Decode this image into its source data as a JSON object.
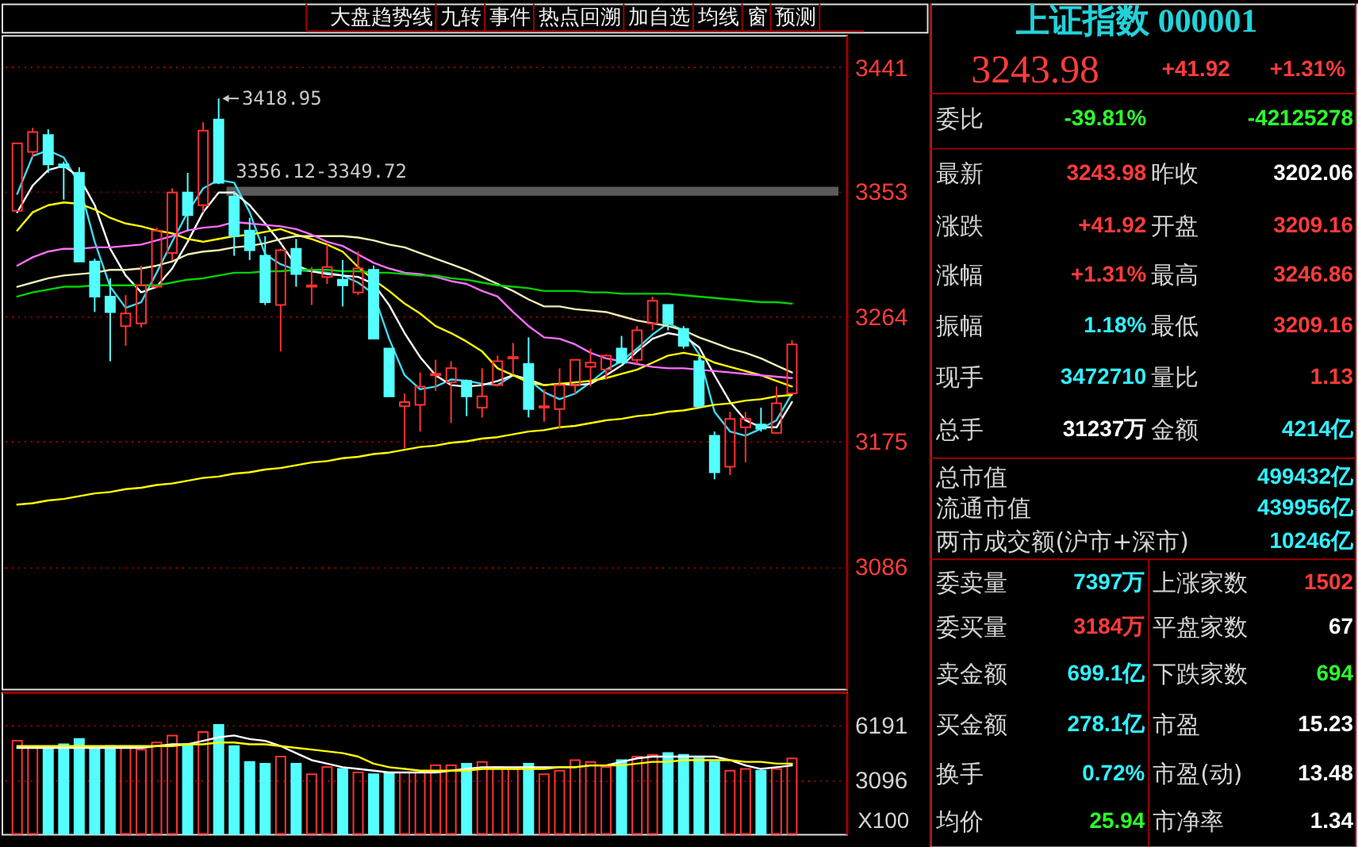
{
  "chart_data": [
    {
      "type": "other",
      "annotations": [
        "大盘趋势线",
        "九转",
        "事件",
        "热点回溯",
        "加自选",
        "均线",
        "窗",
        "预测"
      ]
    },
    {
      "type": "candlestick",
      "categories": [
        null,
        null,
        null,
        null,
        null,
        null,
        null,
        null,
        null,
        null,
        null,
        null,
        null,
        null,
        null,
        null,
        null,
        null,
        null,
        null,
        null,
        null,
        null,
        null,
        null,
        null,
        null,
        null,
        null,
        null,
        null,
        null,
        null,
        null,
        null,
        null,
        null,
        null,
        null,
        null,
        null,
        null,
        null,
        null,
        null,
        null,
        null,
        null,
        null,
        null,
        null
      ],
      "ohlc": [
        [
          3339,
          3387,
          3339,
          3387
        ],
        [
          3381,
          3398,
          3377,
          3395
        ],
        [
          3393,
          3397,
          3366,
          3372
        ],
        [
          3372,
          3374,
          3347,
          3370
        ],
        [
          3366,
          3370,
          3303,
          3303
        ],
        [
          3303,
          3305,
          3267,
          3278
        ],
        [
          3278,
          3291,
          3232,
          3267
        ],
        [
          3257,
          3279,
          3243,
          3266
        ],
        [
          3259,
          3300,
          3256,
          3286
        ],
        [
          3285,
          3327,
          3284,
          3325
        ],
        [
          3309,
          3355,
          3304,
          3352
        ],
        [
          3352,
          3366,
          3325,
          3336
        ],
        [
          3343,
          3402,
          3338,
          3396
        ],
        [
          3404,
          3418.95,
          3358,
          3359
        ],
        [
          3349,
          3353,
          3307,
          3321
        ],
        [
          3325,
          3334,
          3304,
          3311
        ],
        [
          3307,
          3321,
          3272,
          3274
        ],
        [
          3272,
          3312,
          3239,
          3311
        ],
        [
          3312,
          3319,
          3285,
          3294
        ],
        [
          3285,
          3299,
          3272,
          3286
        ],
        [
          3292,
          3315,
          3287,
          3299
        ],
        [
          3290,
          3304,
          3271,
          3286
        ],
        [
          3281,
          3310,
          3279,
          3298
        ],
        [
          3297,
          3300,
          3248,
          3248
        ],
        [
          3241,
          3241,
          3207,
          3207
        ],
        [
          3200,
          3209,
          3170,
          3203
        ],
        [
          3201,
          3224,
          3182,
          3214
        ],
        [
          3222,
          3233,
          3211,
          3223
        ],
        [
          3217,
          3232,
          3188,
          3227
        ],
        [
          3218,
          3219,
          3193,
          3207
        ],
        [
          3199,
          3227,
          3192,
          3207
        ],
        [
          3215,
          3236,
          3214,
          3232
        ],
        [
          3234,
          3245,
          3223,
          3235
        ],
        [
          3230,
          3249,
          3192,
          3198
        ],
        [
          3199,
          3212,
          3189,
          3200
        ],
        [
          3198,
          3227,
          3184,
          3215
        ],
        [
          3215,
          3233,
          3209,
          3233
        ],
        [
          3228,
          3241,
          3214,
          3231
        ],
        [
          3226,
          3237,
          3219,
          3236
        ],
        [
          3241,
          3250,
          3231,
          3231
        ],
        [
          3233,
          3257,
          3230,
          3254
        ],
        [
          3259,
          3278,
          3254,
          3275
        ],
        [
          3272,
          3272,
          3254,
          3259
        ],
        [
          3255,
          3257,
          3241,
          3243
        ],
        [
          3232,
          3235,
          3199,
          3200
        ],
        [
          3179,
          3182,
          3148,
          3153
        ],
        [
          3157,
          3196,
          3151,
          3191
        ],
        [
          3185,
          3196,
          3160,
          3191
        ],
        [
          3187,
          3199,
          3182,
          3184
        ],
        [
          3181,
          3214,
          3181,
          3202.06
        ],
        [
          3209.16,
          3246.86,
          3209.16,
          3243.98
        ]
      ],
      "colors": [
        "#ff3232",
        "#ff3232",
        "#54ffff",
        "#54ffff",
        "#54ffff",
        "#54ffff",
        "#54ffff",
        "#ff3232",
        "#ff3232",
        "#ff3232",
        "#ff3232",
        "#54ffff",
        "#ff3232",
        "#54ffff",
        "#54ffff",
        "#54ffff",
        "#54ffff",
        "#ff3232",
        "#54ffff",
        "#ff3232",
        "#ff3232",
        "#54ffff",
        "#ff3232",
        "#54ffff",
        "#54ffff",
        "#ff3232",
        "#ff3232",
        "#ff3232",
        "#ff3232",
        "#54ffff",
        "#ff3232",
        "#ff3232",
        "#ff3232",
        "#54ffff",
        "#ff3232",
        "#ff3232",
        "#ff3232",
        "#ff3232",
        "#ff3232",
        "#54ffff",
        "#ff3232",
        "#ff3232",
        "#54ffff",
        "#54ffff",
        "#54ffff",
        "#54ffff",
        "#ff3232",
        "#ff3232",
        "#54ffff",
        "#ff3232",
        "#ff3232"
      ],
      "series": [
        {
          "type": "line",
          "color": "#3cdcf0",
          "values": [
            3351,
            3378,
            3382,
            3377,
            3358,
            3317,
            3285,
            3270,
            3274,
            3295,
            3317,
            3338,
            3355,
            3361,
            3359,
            3338,
            3308,
            3301,
            3297,
            3296,
            3295,
            3293,
            3288,
            3280,
            3248,
            3222,
            3212,
            3214,
            3219,
            3218,
            3216,
            3215,
            3222,
            3219,
            3210,
            3205,
            3209,
            3217,
            3226,
            3232,
            3241,
            3251,
            3259,
            3254,
            3237,
            3196,
            3182,
            3179,
            3184,
            3190,
            3209
          ]
        },
        {
          "type": "line",
          "color": "#ffffff",
          "values": [
            3338,
            3357,
            3368,
            3371,
            3363,
            3343,
            3312,
            3293,
            3281,
            3285,
            3298,
            3317,
            3338,
            3352,
            3352,
            3343,
            3330,
            3316,
            3300,
            3296,
            3294,
            3293,
            3292,
            3287,
            3272,
            3252,
            3235,
            3222,
            3215,
            3214,
            3215,
            3218,
            3222,
            3219,
            3215,
            3216,
            3215,
            3216,
            3222,
            3229,
            3239,
            3248,
            3252,
            3250,
            3242,
            3222,
            3203,
            3190,
            3185,
            3185,
            3203
          ]
        },
        {
          "type": "line",
          "color": "#ffff00",
          "values": [
            3325,
            3338,
            3343,
            3345,
            3344,
            3340,
            3334,
            3330,
            3328,
            3325,
            3323,
            3319,
            3317,
            3319,
            3321,
            3322,
            3324,
            3326,
            3322,
            3319,
            3315,
            3310,
            3299,
            3290,
            3282,
            3273,
            3266,
            3257,
            3252,
            3246,
            3239,
            3227,
            3222,
            3217,
            3215,
            3216,
            3217,
            3218,
            3220,
            3223,
            3226,
            3231,
            3236,
            3238,
            3236,
            3231,
            3228,
            3225,
            3222,
            3218,
            3214
          ]
        },
        {
          "type": "line",
          "color": "#f0eeb4",
          "values": [
            3285,
            3288,
            3291,
            3293,
            3294,
            3295,
            3297,
            3297,
            3298,
            3300,
            3303,
            3308,
            3310,
            3311,
            3313,
            3314,
            3316,
            3319,
            3321,
            3321,
            3321,
            3321,
            3320,
            3318,
            3315,
            3313,
            3309,
            3305,
            3301,
            3297,
            3292,
            3287,
            3282,
            3276,
            3271,
            3271,
            3269,
            3268,
            3267,
            3264,
            3261,
            3259,
            3257,
            3254,
            3249,
            3245,
            3241,
            3238,
            3234,
            3229,
            3224
          ]
        },
        {
          "type": "line",
          "color": "#ff6eff",
          "values": [
            3300,
            3306,
            3310,
            3312,
            3312,
            3313,
            3313,
            3314,
            3315,
            3318,
            3321,
            3325,
            3327,
            3328,
            3331,
            3330,
            3329,
            3328,
            3326,
            3322,
            3317,
            3314,
            3308,
            3302,
            3298,
            3295,
            3294,
            3292,
            3289,
            3287,
            3282,
            3278,
            3267,
            3257,
            3249,
            3248,
            3244,
            3238,
            3234,
            3232,
            3230,
            3228,
            3227,
            3227,
            3226,
            3225,
            3224,
            3223,
            3222,
            3221,
            3220
          ]
        },
        {
          "type": "line",
          "color": "#00d200",
          "values": [
            3278,
            3281,
            3283,
            3285,
            3285,
            3286,
            3286,
            3286,
            3286,
            3286,
            3288,
            3290,
            3291,
            3293,
            3295,
            3295,
            3296,
            3296,
            3297,
            3297,
            3297,
            3296,
            3296,
            3295,
            3295,
            3294,
            3293,
            3293,
            3291,
            3290,
            3288,
            3286,
            3285,
            3284,
            3282,
            3282,
            3282,
            3281,
            3281,
            3280,
            3280,
            3280,
            3280,
            3279,
            3278,
            3277,
            3276,
            3275,
            3274,
            3274,
            3273
          ]
        },
        {
          "type": "line",
          "color": "#ffff00",
          "values": [
            3130,
            3131,
            3133,
            3134,
            3136,
            3138,
            3139,
            3141,
            3142,
            3144,
            3145,
            3147,
            3149,
            3150,
            3152,
            3153,
            3155,
            3156,
            3158,
            3160,
            3161,
            3163,
            3164,
            3166,
            3167,
            3169,
            3171,
            3172,
            3174,
            3175,
            3177,
            3178,
            3180,
            3182,
            3183,
            3185,
            3186,
            3188,
            3190,
            3191,
            3193,
            3194,
            3196,
            3197,
            3199,
            3201,
            3202,
            3204,
            3205,
            3207,
            3208
          ]
        }
      ],
      "annotations": [
        "3418.95"
      ],
      "bands": [
        {
          "axis": "y",
          "from": 3349.72,
          "to": 3356.12,
          "label": "3356.12-3349.72",
          "color": "#5a5a5a"
        }
      ],
      "ylim": [
        2999,
        3464
      ],
      "yticks": [
        3086,
        3175,
        3264,
        3353,
        3441
      ],
      "grid": "y",
      "tick_labels": "y"
    },
    {
      "type": "bar",
      "categories": [
        null,
        null,
        null,
        null,
        null,
        null,
        null,
        null,
        null,
        null,
        null,
        null,
        null,
        null,
        null,
        null,
        null,
        null,
        null,
        null,
        null,
        null,
        null,
        null,
        null,
        null,
        null,
        null,
        null,
        null,
        null,
        null,
        null,
        null,
        null,
        null,
        null,
        null,
        null,
        null,
        null,
        null,
        null,
        null,
        null,
        null,
        null,
        null,
        null,
        null,
        null
      ],
      "series": [
        {
          "type": "bar",
          "values": [
            5300,
            4900,
            4900,
            5100,
            5400,
            4900,
            5000,
            5000,
            4800,
            5200,
            5600,
            5100,
            5800,
            6200,
            5000,
            4100,
            4000,
            4400,
            4000,
            3400,
            3800,
            3700,
            3500,
            3400,
            3500,
            3500,
            3500,
            3900,
            3900,
            4000,
            4100,
            3800,
            3700,
            4000,
            3400,
            3600,
            4200,
            4100,
            3800,
            4200,
            4400,
            4500,
            4600,
            4500,
            4300,
            4100,
            3600,
            3700,
            3600,
            3700,
            4300
          ],
          "colors": [
            "#ff3232",
            "#ff3232",
            "#54ffff",
            "#54ffff",
            "#54ffff",
            "#54ffff",
            "#54ffff",
            "#ff3232",
            "#ff3232",
            "#ff3232",
            "#ff3232",
            "#54ffff",
            "#ff3232",
            "#54ffff",
            "#54ffff",
            "#54ffff",
            "#54ffff",
            "#ff3232",
            "#54ffff",
            "#ff3232",
            "#ff3232",
            "#54ffff",
            "#ff3232",
            "#54ffff",
            "#54ffff",
            "#ff3232",
            "#ff3232",
            "#ff3232",
            "#ff3232",
            "#54ffff",
            "#ff3232",
            "#ff3232",
            "#ff3232",
            "#54ffff",
            "#ff3232",
            "#ff3232",
            "#ff3232",
            "#ff3232",
            "#ff3232",
            "#54ffff",
            "#ff3232",
            "#ff3232",
            "#54ffff",
            "#54ffff",
            "#54ffff",
            "#54ffff",
            "#ff3232",
            "#ff3232",
            "#54ffff",
            "#ff3232",
            "#ff3232"
          ]
        },
        {
          "type": "line",
          "color": "#ffffff",
          "values": [
            4900,
            4900,
            4900,
            4900,
            4900,
            4900,
            4900,
            4900,
            4900,
            5000,
            5100,
            5100,
            5300,
            5500,
            5600,
            5400,
            5300,
            5000,
            4600,
            4200,
            4000,
            3800,
            3700,
            3600,
            3500,
            3500,
            3500,
            3500,
            3600,
            3700,
            3800,
            3800,
            3800,
            3800,
            3800,
            3800,
            3800,
            3900,
            3900,
            4100,
            4300,
            4400,
            4400,
            4400,
            4400,
            4400,
            4200,
            3900,
            3700,
            3800,
            3900
          ]
        },
        {
          "type": "line",
          "color": "#ffff00",
          "values": [
            5000,
            5000,
            5000,
            5000,
            5000,
            5000,
            5000,
            5000,
            5000,
            5000,
            5000,
            5100,
            5100,
            5200,
            5200,
            5100,
            5100,
            5000,
            4900,
            4800,
            4700,
            4600,
            4400,
            4000,
            3800,
            3700,
            3600,
            3600,
            3600,
            3600,
            3700,
            3700,
            3700,
            3700,
            3700,
            3800,
            3800,
            3900,
            3900,
            3900,
            4000,
            4100,
            4100,
            4200,
            4200,
            4200,
            4200,
            4100,
            4100,
            4000,
            4000
          ]
        }
      ],
      "ylabel": "X100",
      "ylim": [
        0,
        8080
      ],
      "yticks": [
        3096,
        6191
      ],
      "grid": "y",
      "tick_labels": "y"
    },
    {
      "type": "other",
      "title": "上证指数 000001",
      "annotations": [
        "3243.98",
        "+41.92",
        "+1.31%",
        "委比",
        "-39.81%",
        "-42125278",
        "最新",
        "3243.98",
        "昨收",
        "3202.06",
        "涨跌",
        "+41.92",
        "开盘",
        "3209.16",
        "涨幅",
        "+1.31%",
        "最高",
        "3246.86",
        "振幅",
        "1.18%",
        "最低",
        "3209.16",
        "现手",
        "3472710",
        "量比",
        "1.13",
        "总手",
        "31237万",
        "金额",
        "4214亿",
        "总市值",
        "499432亿",
        "流通市值",
        "439956亿",
        "两市成交额(沪市+深市)",
        "10246亿",
        "委卖量",
        "7397万",
        "上涨家数",
        "1502",
        "委买量",
        "3184万",
        "平盘家数",
        "67",
        "卖金额",
        "699.1亿",
        "下跌家数",
        "694",
        "买金额",
        "278.1亿",
        "市盈",
        "15.23",
        "换手",
        "0.72%",
        "市盈(动)",
        "13.48",
        "均价",
        "25.94",
        "市净率",
        "1.34"
      ],
      "colors": [
        "#ff3c3c",
        "#ff3c3c",
        "#ff3c3c",
        "#d2d2d2",
        "#2cff2c",
        "#2cff2c",
        "#d2d2d2",
        "#ff3c3c",
        "#d2d2d2",
        "#ffffff",
        "#d2d2d2",
        "#ff3c3c",
        "#d2d2d2",
        "#ff3c3c",
        "#d2d2d2",
        "#ff3c3c",
        "#d2d2d2",
        "#ff3c3c",
        "#d2d2d2",
        "#32f0ff",
        "#d2d2d2",
        "#ff3c3c",
        "#d2d2d2",
        "#32f0ff",
        "#d2d2d2",
        "#ff3c3c",
        "#d2d2d2",
        "#ffffff",
        "#d2d2d2",
        "#32f0ff",
        "#d2d2d2",
        "#32f0ff",
        "#d2d2d2",
        "#32f0ff",
        "#d2d2d2",
        "#32f0ff",
        "#d2d2d2",
        "#32f0ff",
        "#d2d2d2",
        "#ff3c3c",
        "#d2d2d2",
        "#ff3c3c",
        "#d2d2d2",
        "#ffffff",
        "#d2d2d2",
        "#32f0ff",
        "#d2d2d2",
        "#2cff2c",
        "#d2d2d2",
        "#32f0ff",
        "#d2d2d2",
        "#ffffff",
        "#d2d2d2",
        "#32f0ff",
        "#d2d2d2",
        "#ffffff",
        "#d2d2d2",
        "#2cff2c",
        "#d2d2d2",
        "#ffffff"
      ]
    }
  ]
}
